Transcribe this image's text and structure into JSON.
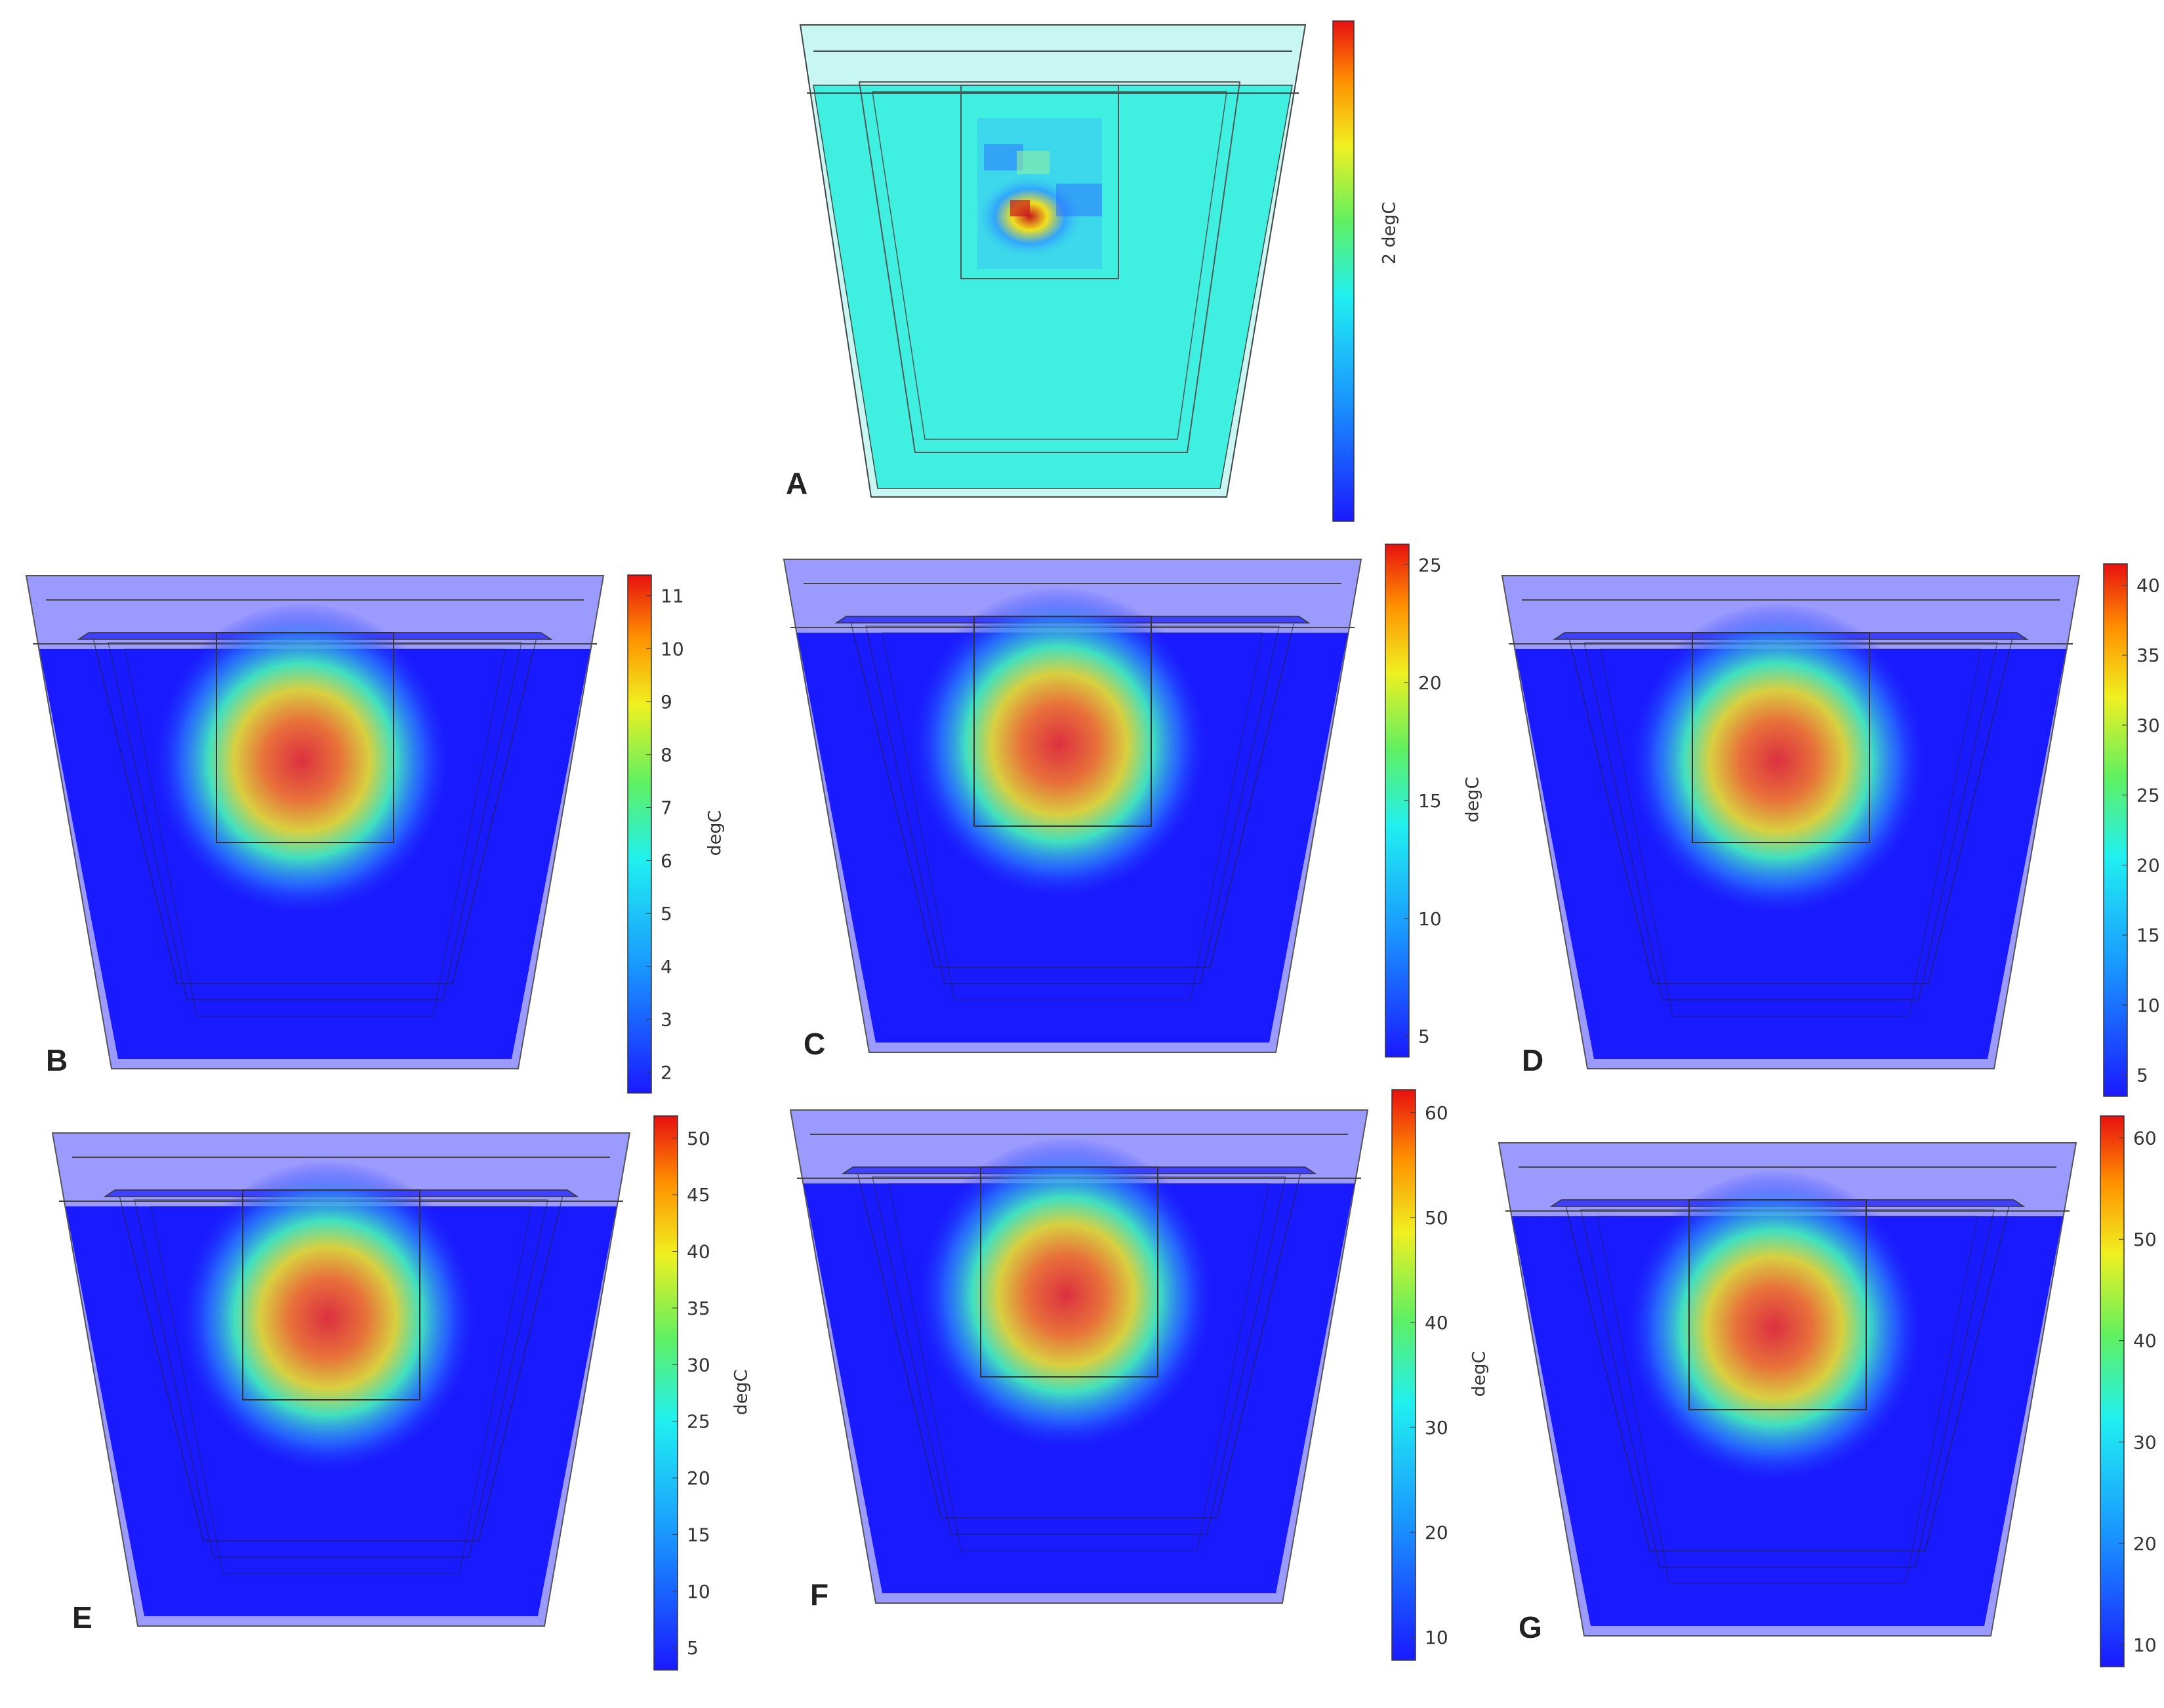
{
  "panels": [
    {
      "id": "A",
      "label": "A",
      "unit": "degC",
      "ticks": [],
      "field": "noisy",
      "cb_text": "2 degC"
    },
    {
      "id": "B",
      "label": "B",
      "unit": "degC",
      "ticks": [
        "2",
        "3",
        "4",
        "5",
        "6",
        "7",
        "8",
        "9",
        "10",
        "11"
      ],
      "field": "hot"
    },
    {
      "id": "C",
      "label": "C",
      "unit": "degC",
      "ticks": [
        "5",
        "10",
        "15",
        "20",
        "25"
      ],
      "field": "hot"
    },
    {
      "id": "D",
      "label": "D",
      "unit": "degC",
      "ticks": [
        "5",
        "10",
        "15",
        "20",
        "25",
        "30",
        "35",
        "40"
      ],
      "field": "hot"
    },
    {
      "id": "E",
      "label": "E",
      "unit": "degC",
      "ticks": [
        "5",
        "10",
        "15",
        "20",
        "25",
        "30",
        "35",
        "40",
        "45",
        "50"
      ],
      "field": "hot"
    },
    {
      "id": "F",
      "label": "F",
      "unit": "degC",
      "ticks": [
        "10",
        "20",
        "30",
        "40",
        "50",
        "60"
      ],
      "field": "hot"
    },
    {
      "id": "G",
      "label": "G",
      "unit": "degC",
      "ticks": [
        "10",
        "20",
        "30",
        "40",
        "50",
        "60"
      ],
      "field": "hot"
    }
  ],
  "colors": {
    "background": "#1a1aff",
    "background_A": "#3ff0e0",
    "hot_center": "#e0303a",
    "outline": "#333333"
  }
}
